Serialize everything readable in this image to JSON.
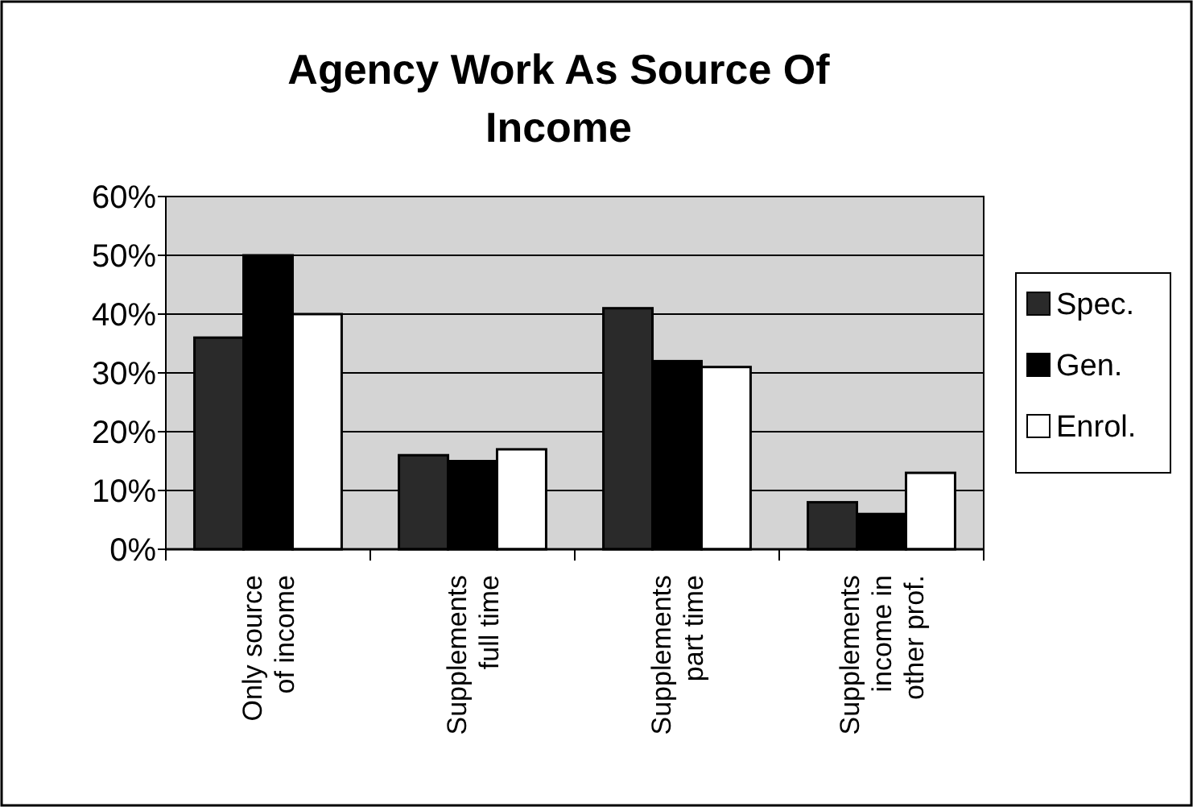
{
  "chart_data": {
    "type": "bar",
    "title": "Agency Work As Source Of Income",
    "categories": [
      "Only source of income",
      "Supplements full time",
      "Supplements part time",
      "Supplements income in other prof."
    ],
    "series": [
      {
        "name": "Spec.",
        "color": "#2a2a2a",
        "values": [
          36,
          16,
          41,
          8
        ]
      },
      {
        "name": "Gen.",
        "color": "#000000",
        "values": [
          50,
          15,
          32,
          6
        ]
      },
      {
        "name": "Enrol.",
        "color": "#ffffff",
        "values": [
          40,
          17,
          31,
          13
        ]
      }
    ],
    "ylim": [
      0,
      60
    ],
    "yticks": [
      {
        "value": 0,
        "label": "0%"
      },
      {
        "value": 10,
        "label": "10%"
      },
      {
        "value": 20,
        "label": "20%"
      },
      {
        "value": 30,
        "label": "30%"
      },
      {
        "value": 40,
        "label": "40%"
      },
      {
        "value": 50,
        "label": "50%"
      },
      {
        "value": 60,
        "label": "60%"
      }
    ],
    "grid": "y",
    "legend": "right"
  }
}
